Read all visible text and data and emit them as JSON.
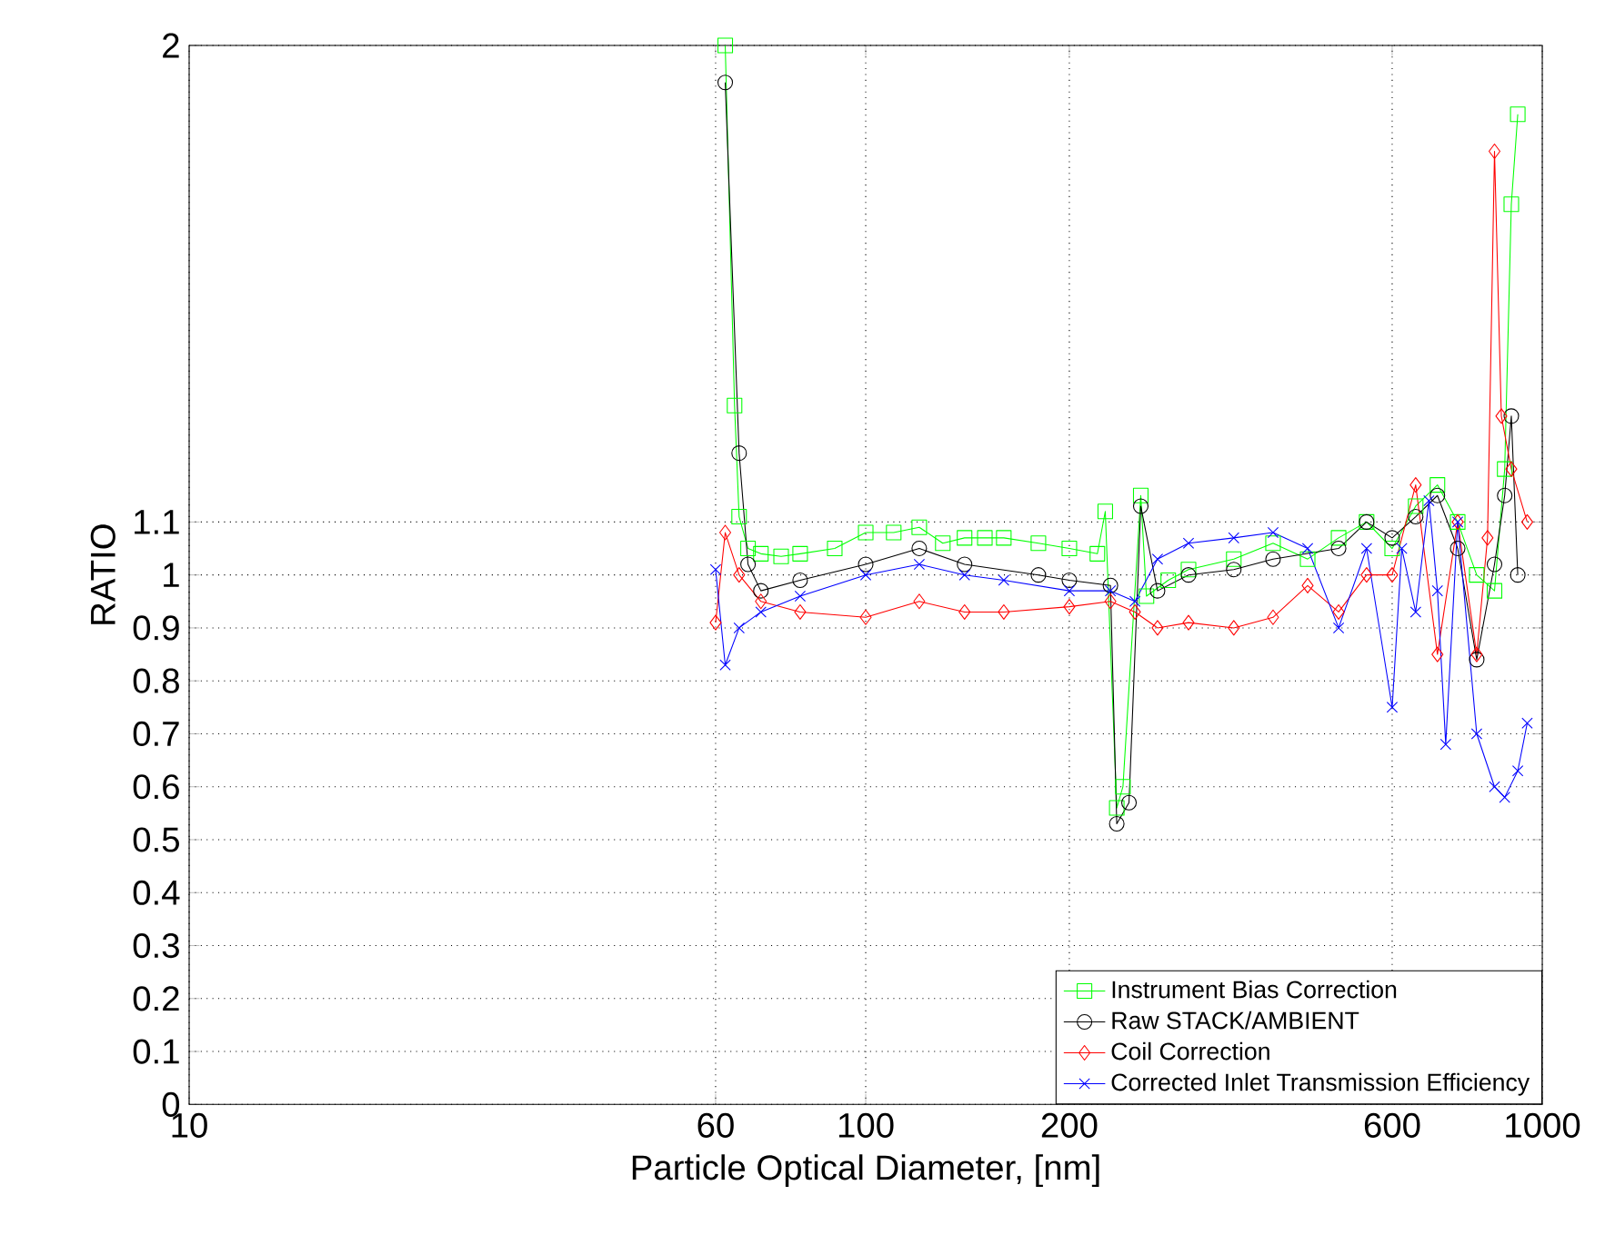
{
  "chart_data": {
    "type": "line",
    "xlabel": "Particle Optical Diameter, [nm]",
    "ylabel": "RATIO",
    "log": "x",
    "grid": true,
    "legend": "bottom right",
    "line_style": "solid",
    "xlim": [
      10,
      1000
    ],
    "xticks": [
      10,
      60,
      100,
      200,
      600,
      1000
    ],
    "ylim": [
      0,
      2
    ],
    "yticks": [
      0,
      0.1,
      0.2,
      0.3,
      0.4,
      0.5,
      0.6,
      0.7,
      0.8,
      0.9,
      1,
      1.1,
      2
    ],
    "series": [
      {
        "name": "Instrument Bias Correction",
        "color": "#00ff00",
        "marker": "square",
        "x": [
          62,
          64,
          65,
          67,
          70,
          75,
          80,
          90,
          100,
          110,
          120,
          130,
          140,
          150,
          160,
          180,
          200,
          220,
          226,
          235,
          240,
          255,
          260,
          280,
          300,
          350,
          400,
          450,
          500,
          550,
          600,
          650,
          700,
          750,
          800,
          850,
          880,
          900,
          920
        ],
        "values": [
          2.0,
          1.32,
          1.11,
          1.05,
          1.04,
          1.035,
          1.04,
          1.05,
          1.08,
          1.08,
          1.09,
          1.06,
          1.07,
          1.07,
          1.07,
          1.06,
          1.05,
          1.04,
          1.12,
          0.56,
          0.6,
          1.15,
          0.96,
          0.99,
          1.01,
          1.03,
          1.06,
          1.03,
          1.07,
          1.1,
          1.05,
          1.13,
          1.17,
          1.1,
          1.0,
          0.97,
          1.2,
          1.7,
          1.87
        ]
      },
      {
        "name": "Raw STACK/AMBIENT",
        "color": "#000000",
        "marker": "circle",
        "x": [
          62,
          65,
          67,
          70,
          80,
          100,
          120,
          140,
          180,
          200,
          230,
          235,
          245,
          255,
          270,
          300,
          350,
          400,
          500,
          550,
          600,
          650,
          700,
          750,
          800,
          850,
          880,
          900,
          920
        ],
        "values": [
          1.93,
          1.23,
          1.02,
          0.97,
          0.99,
          1.02,
          1.05,
          1.02,
          1.0,
          0.99,
          0.98,
          0.53,
          0.57,
          1.13,
          0.97,
          1.0,
          1.01,
          1.03,
          1.05,
          1.1,
          1.07,
          1.11,
          1.15,
          1.05,
          0.84,
          1.02,
          1.15,
          1.3,
          1.0
        ]
      },
      {
        "name": "Coil Correction",
        "color": "#ff0000",
        "marker": "diamond",
        "x": [
          60,
          62,
          65,
          70,
          80,
          100,
          120,
          140,
          160,
          200,
          230,
          250,
          270,
          300,
          350,
          400,
          450,
          500,
          550,
          600,
          650,
          700,
          750,
          800,
          830,
          850,
          870,
          900,
          950
        ],
        "values": [
          0.91,
          1.08,
          1.0,
          0.95,
          0.93,
          0.92,
          0.95,
          0.93,
          0.93,
          0.94,
          0.95,
          0.93,
          0.9,
          0.91,
          0.9,
          0.92,
          0.98,
          0.93,
          1.0,
          1.0,
          1.17,
          0.85,
          1.1,
          0.85,
          1.07,
          1.8,
          1.3,
          1.2,
          1.1
        ]
      },
      {
        "name": "Corrected Inlet Transmission Efficiency",
        "color": "#0000ff",
        "marker": "cross",
        "x": [
          60,
          62,
          65,
          70,
          80,
          100,
          120,
          140,
          160,
          200,
          230,
          250,
          270,
          300,
          350,
          400,
          450,
          500,
          550,
          600,
          620,
          650,
          680,
          700,
          720,
          750,
          800,
          850,
          880,
          920,
          950
        ],
        "values": [
          1.01,
          0.83,
          0.9,
          0.93,
          0.96,
          1.0,
          1.02,
          1.0,
          0.99,
          0.97,
          0.97,
          0.95,
          1.03,
          1.06,
          1.07,
          1.08,
          1.05,
          0.9,
          1.05,
          0.75,
          1.05,
          0.93,
          1.14,
          0.97,
          0.68,
          1.1,
          0.7,
          0.6,
          0.58,
          0.63,
          0.72
        ]
      }
    ]
  }
}
